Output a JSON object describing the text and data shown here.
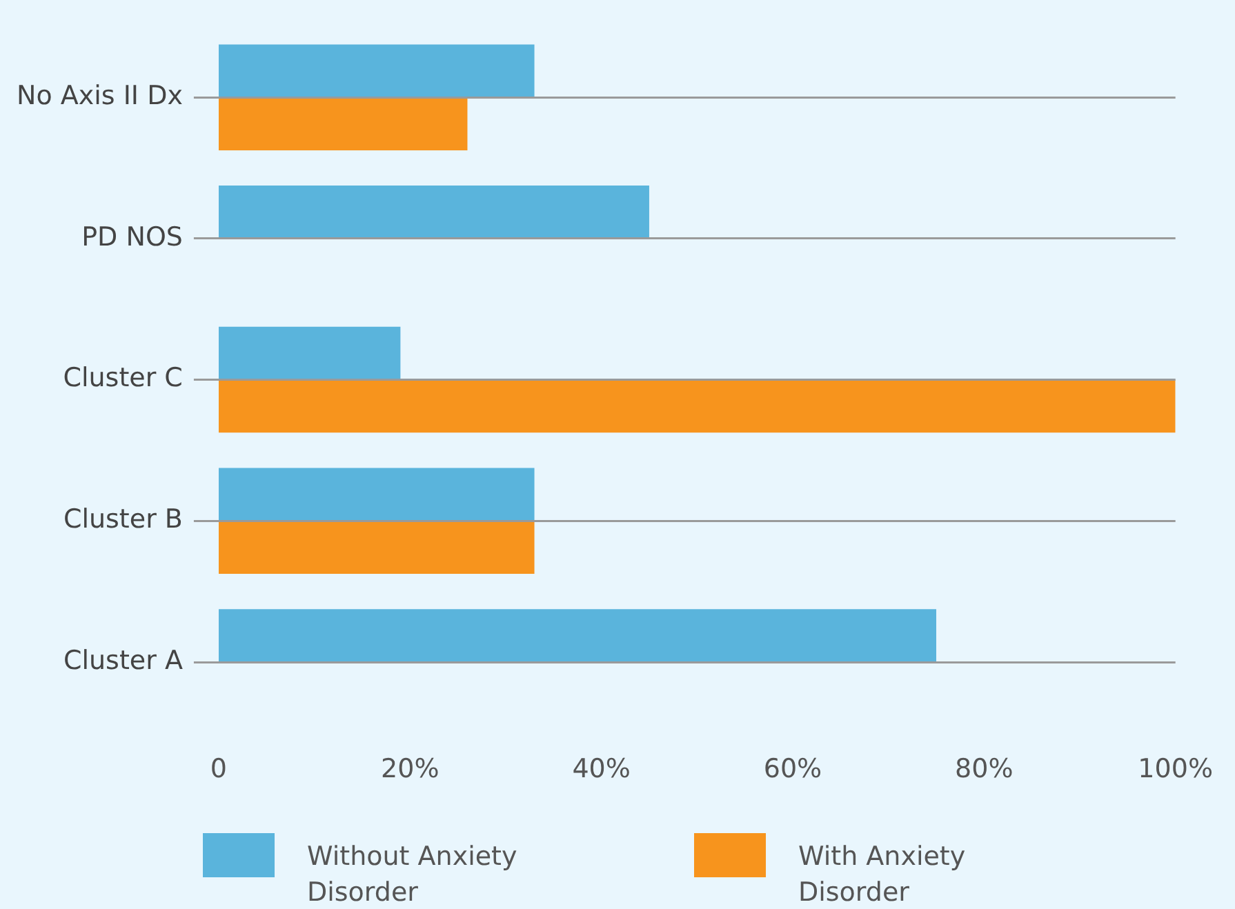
{
  "chart_data": {
    "type": "bar",
    "orientation": "horizontal",
    "categories": [
      "No Axis II Dx",
      "PD NOS",
      "Cluster C",
      "Cluster B",
      "Cluster A"
    ],
    "series": [
      {
        "name": "Without Anxiety Disorder",
        "color": "#5ab4dc",
        "values": [
          33,
          45,
          19,
          33,
          75
        ]
      },
      {
        "name": "With Anxiety Disorder",
        "color": "#f7941d",
        "values": [
          26,
          null,
          100,
          33,
          null
        ]
      }
    ],
    "xlim": [
      0,
      100
    ],
    "xticks": [
      {
        "value": 0,
        "label": "0"
      },
      {
        "value": 20,
        "label": "20%"
      },
      {
        "value": 40,
        "label": "40%"
      },
      {
        "value": 60,
        "label": "60%"
      },
      {
        "value": 80,
        "label": "80%"
      },
      {
        "value": 100,
        "label": "100%"
      }
    ],
    "grid": "y",
    "legend": "bottom"
  }
}
